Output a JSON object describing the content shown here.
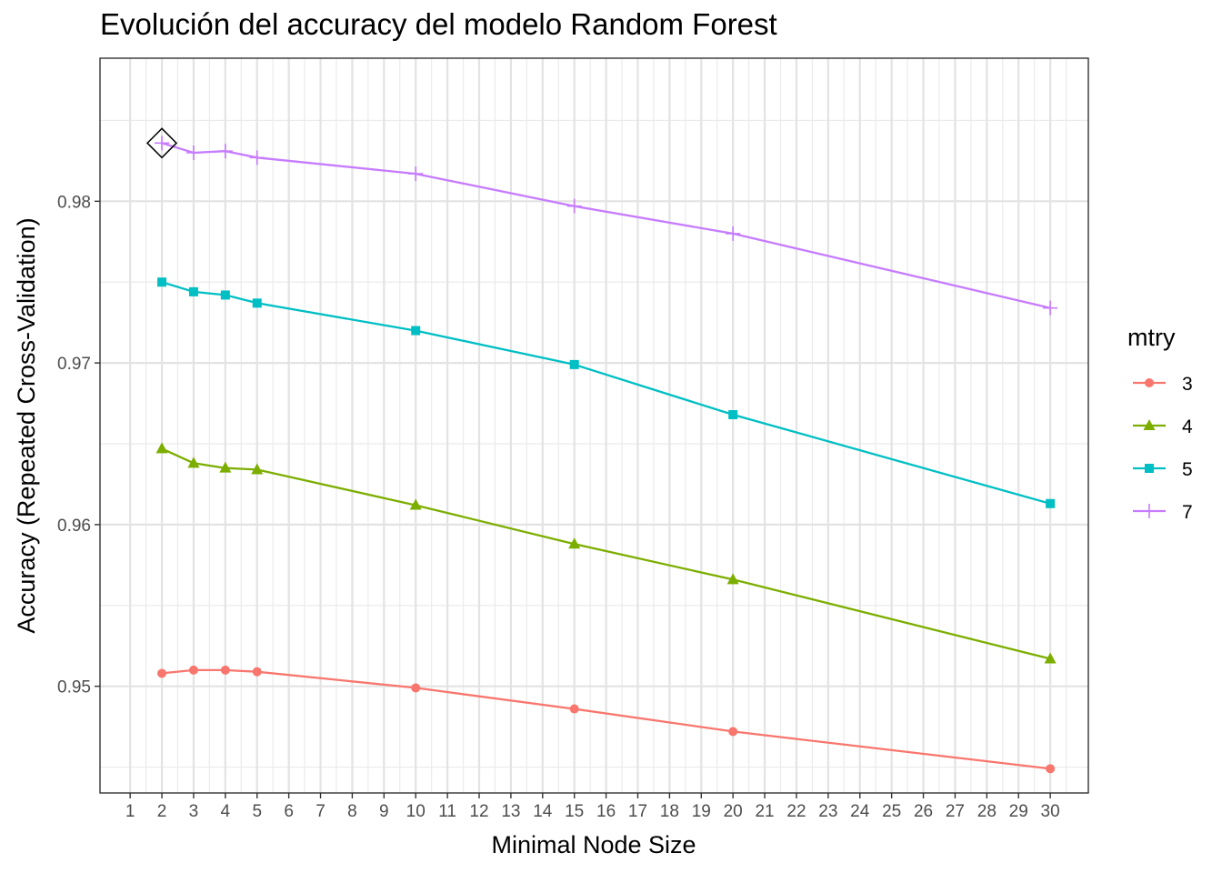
{
  "chart_data": {
    "type": "line",
    "title": "Evolución del accuracy del modelo Random Forest",
    "xlabel": "Minimal Node Size",
    "ylabel": "Accuracy (Repeated Cross-Validation)",
    "x_ticks": [
      "1",
      "2",
      "3",
      "4",
      "5",
      "6",
      "7",
      "8",
      "9",
      "10",
      "11",
      "12",
      "13",
      "14",
      "15",
      "16",
      "17",
      "18",
      "19",
      "20",
      "21",
      "22",
      "23",
      "24",
      "25",
      "26",
      "27",
      "28",
      "29",
      "30"
    ],
    "y_ticks": [
      "0.95",
      "0.96",
      "0.97",
      "0.98"
    ],
    "xlim": [
      0.05,
      31.2
    ],
    "ylim": [
      0.9434,
      0.98885
    ],
    "grid": true,
    "legend": {
      "title": "mtry",
      "position": "right"
    },
    "x": [
      2,
      3,
      4,
      5,
      10,
      15,
      20,
      30
    ],
    "series": [
      {
        "name": "3",
        "color": "#F8766D",
        "marker": "circle",
        "values": [
          0.9508,
          0.951,
          0.951,
          0.9509,
          0.9499,
          0.9486,
          0.9472,
          0.9449
        ]
      },
      {
        "name": "4",
        "color": "#7CAE00",
        "marker": "triangle",
        "values": [
          0.9647,
          0.9638,
          0.9635,
          0.9634,
          0.9612,
          0.9588,
          0.9566,
          0.9517
        ]
      },
      {
        "name": "5",
        "color": "#00BFC4",
        "marker": "square",
        "values": [
          0.975,
          0.9744,
          0.9742,
          0.9737,
          0.972,
          0.9699,
          0.9668,
          0.9613
        ]
      },
      {
        "name": "7",
        "color": "#C77CFF",
        "marker": "plus",
        "values": [
          0.9836,
          0.983,
          0.9831,
          0.9827,
          0.9817,
          0.9797,
          0.978,
          0.9734
        ]
      }
    ],
    "best": {
      "x": 2,
      "y": 0.9836
    }
  }
}
